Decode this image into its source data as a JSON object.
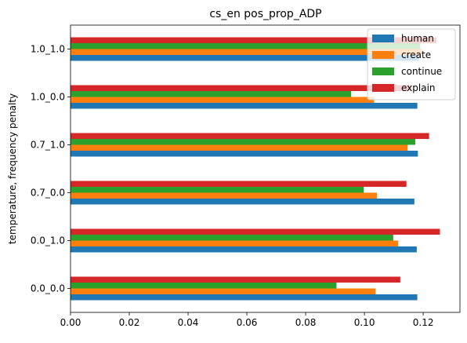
{
  "chart_data": {
    "type": "bar",
    "orientation": "horizontal",
    "title": "cs_en pos_prop_ADP",
    "xlabel": "",
    "ylabel": "temperature, frequency penalty",
    "categories": [
      "0.0_0.0",
      "0.0_1.0",
      "0.7_0.0",
      "0.7_1.0",
      "1.0_0.0",
      "1.0_1.0"
    ],
    "series": [
      {
        "name": "human",
        "color": "#1f77b4",
        "values": [
          0.118,
          0.1178,
          0.117,
          0.1182,
          0.118,
          0.1185
        ]
      },
      {
        "name": "create",
        "color": "#ff7f0e",
        "values": [
          0.1038,
          0.1115,
          0.1043,
          0.1147,
          0.1033,
          0.1195
        ]
      },
      {
        "name": "continue",
        "color": "#2ca02c",
        "values": [
          0.0905,
          0.1098,
          0.0998,
          0.1173,
          0.0955,
          0.119
        ]
      },
      {
        "name": "explain",
        "color": "#d62728",
        "values": [
          0.1122,
          0.1257,
          0.1143,
          0.122,
          0.1158,
          0.1245
        ]
      }
    ],
    "xlim": [
      0.0,
      0.1325
    ],
    "xticks": [
      "0.00",
      "0.02",
      "0.04",
      "0.06",
      "0.08",
      "0.10",
      "0.12"
    ],
    "xtick_values": [
      0.0,
      0.02,
      0.04,
      0.06,
      0.08,
      0.1,
      0.12
    ],
    "grid": false,
    "legend_position": "top-right"
  }
}
